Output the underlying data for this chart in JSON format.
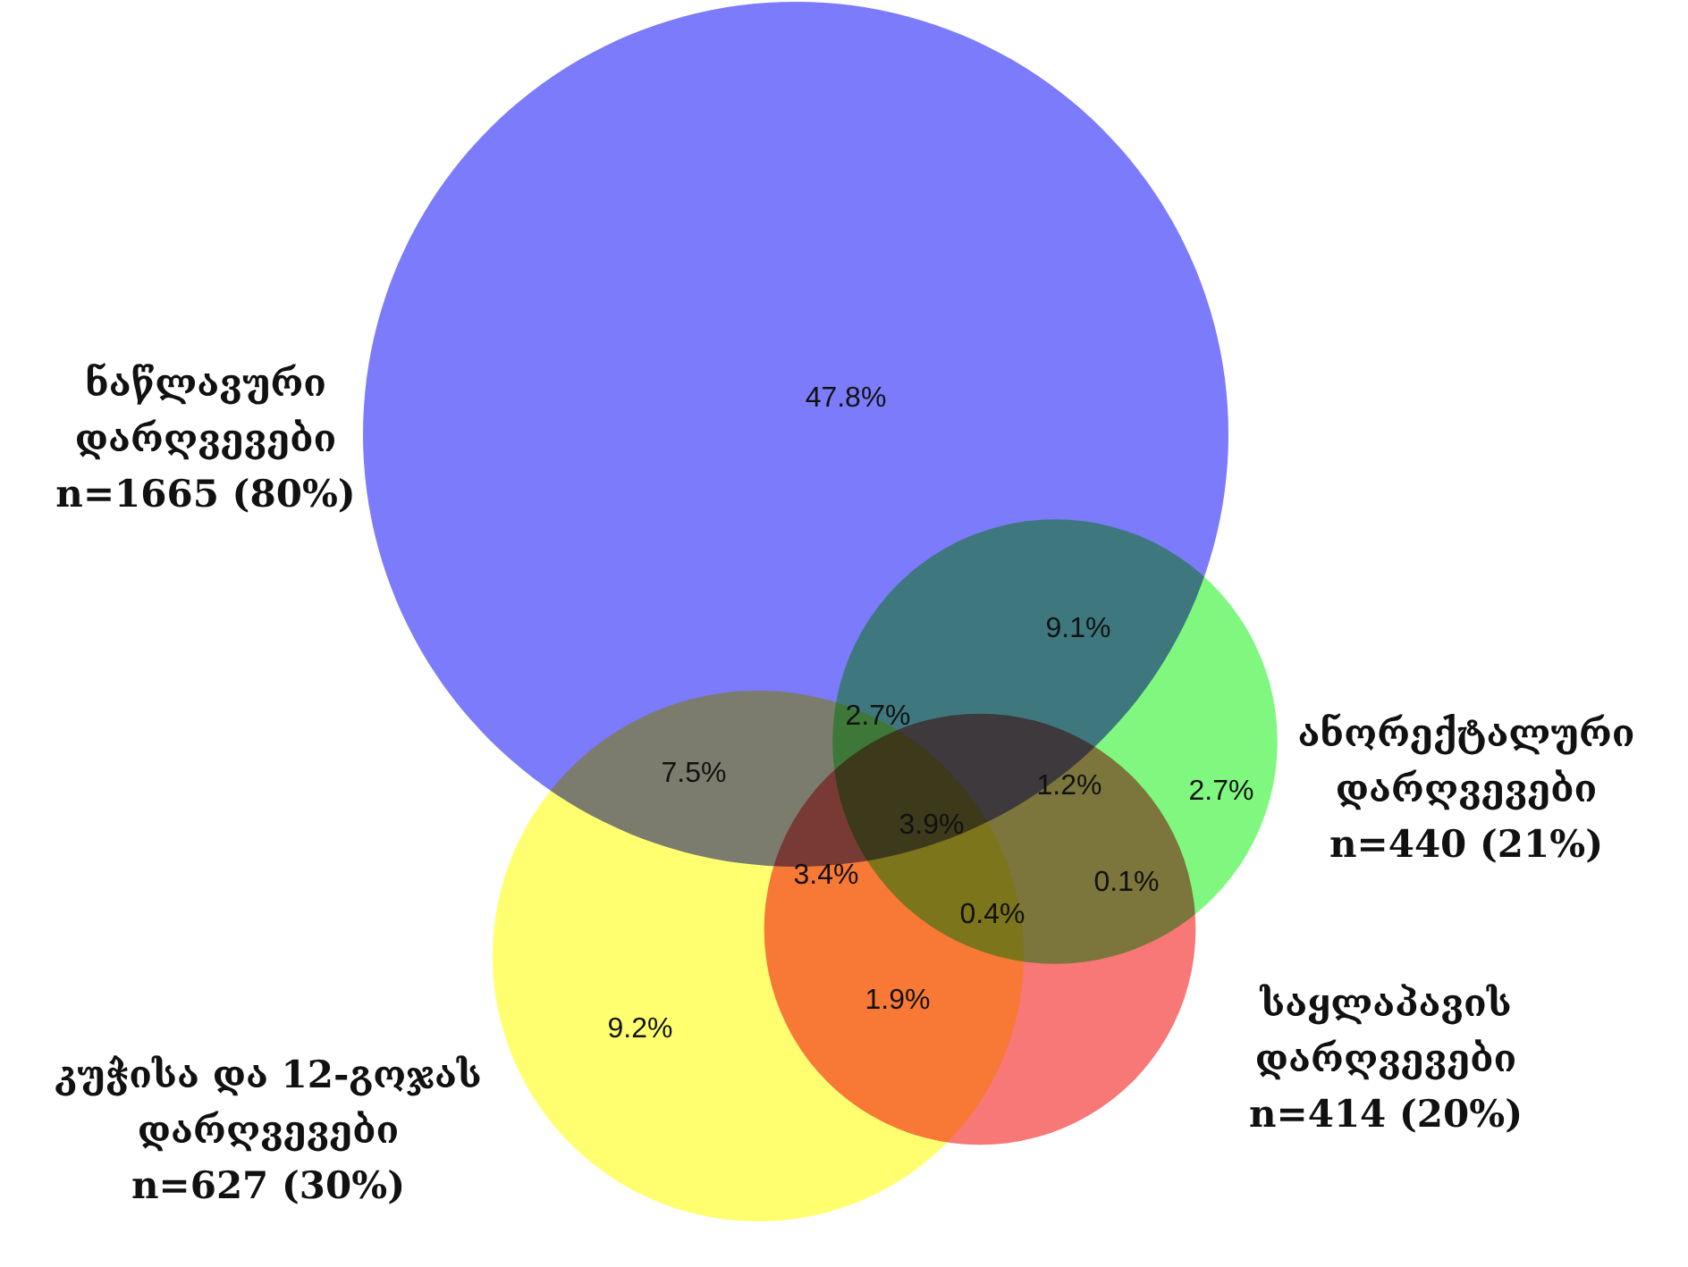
{
  "chart_data": {
    "type": "other",
    "categories": [
      "ნაწლავური დარღვევები",
      "ანორექტალური დარღვევები",
      "საყლაპავის დარღვევები",
      "კუჭისა და 12-გოჯას დარღვევები"
    ],
    "values": [
      1665,
      440,
      414,
      627
    ],
    "value_labels": [
      "n=1665 (80%)",
      "n=440 (21%)",
      "n=414 (20%)",
      "n=627 (30%)"
    ],
    "colors": [
      "#7b7bfb",
      "#80f880",
      "#f87878",
      "#ffff70"
    ],
    "annotations": [
      "47.8%",
      "9.1%",
      "2.7%",
      "7.5%",
      "3.9%",
      "1.2%",
      "2.7%",
      "3.4%",
      "0.1%",
      "0.4%",
      "9.2%",
      "1.9%"
    ]
  }
}
